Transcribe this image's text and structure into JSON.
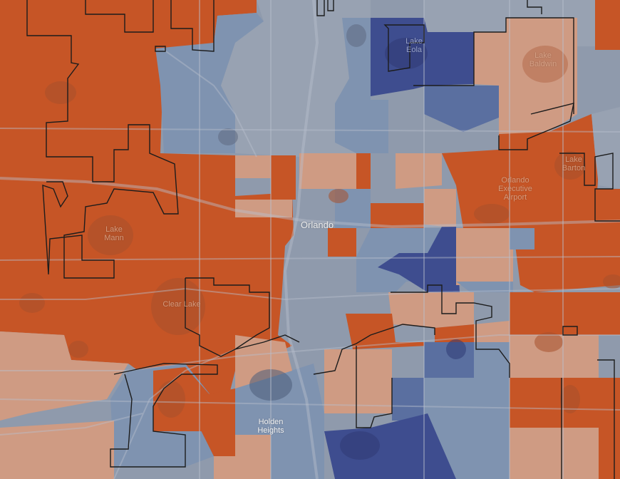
{
  "map": {
    "labels": {
      "lake_eola": "Lake\nEola",
      "lake_baldwin": "Lake\nBaldwin",
      "lake_barton": "Lake\nBarton",
      "airport": "Orlando\nExecutive\nAirport",
      "orlando": "Orlando",
      "lake_mann": "Lake\nMann",
      "clear_lake": "Clear Lake",
      "holden_heights": "Holden\nHeights"
    },
    "colors": {
      "strong_red": "#c65526",
      "mid_red": "#d6774f",
      "light_red": "#cf9b83",
      "neutral": "#8f9aac",
      "light_blue": "#7f93b0",
      "mid_blue": "#5a6fa0",
      "strong_blue": "#3e4d8f",
      "boundary": "#1c1c1c",
      "road": "#b8bfcb"
    }
  }
}
